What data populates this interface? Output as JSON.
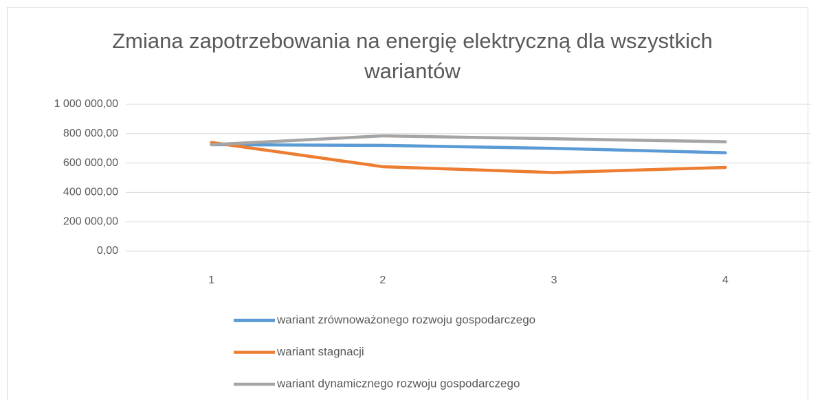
{
  "chart_data": {
    "type": "line",
    "title": "Zmiana zapotrzebowania na energię elektryczną dla wszystkich wariantów",
    "categories": [
      "1",
      "2",
      "3",
      "4"
    ],
    "series": [
      {
        "name": "wariant zrównoważonego rozwoju gospodarczego",
        "color": "#5b9bd5",
        "values": [
          725000,
          720000,
          700000,
          670000
        ]
      },
      {
        "name": "wariant stagnacji",
        "color": "#ed7d31",
        "values": [
          740000,
          575000,
          535000,
          570000
        ]
      },
      {
        "name": "wariant dynamicznego rozwoju gospodarczego",
        "color": "#a5a5a5",
        "values": [
          725000,
          785000,
          765000,
          745000
        ]
      }
    ],
    "ylim": [
      0,
      1000000
    ],
    "yticks": [
      {
        "value": 0,
        "label": "0,00"
      },
      {
        "value": 200000,
        "label": "200 000,00"
      },
      {
        "value": 400000,
        "label": "400 000,00"
      },
      {
        "value": 600000,
        "label": "600 000,00"
      },
      {
        "value": 800000,
        "label": "800 000,00"
      },
      {
        "value": 1000000,
        "label": "1 000 000,00"
      }
    ],
    "grid": true,
    "legend": "bottom"
  }
}
